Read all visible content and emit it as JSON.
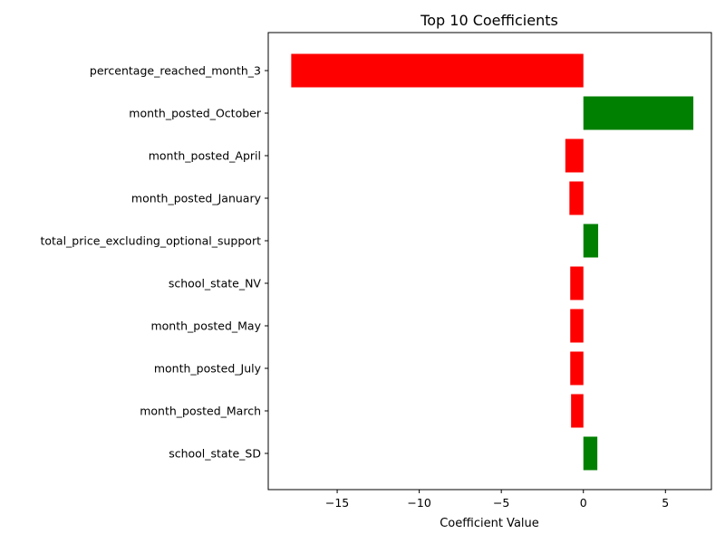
{
  "chart_data": {
    "type": "bar",
    "orientation": "horizontal",
    "title": "Top 10 Coefficients",
    "xlabel": "Coefficient Value",
    "ylabel": "",
    "xlim": [
      -19.2,
      7.8
    ],
    "xticks": [
      -15,
      -10,
      -5,
      0,
      5
    ],
    "xtick_labels": [
      "−15",
      "−10",
      "−5",
      "0",
      "5"
    ],
    "grid": false,
    "colors": {
      "positive": "#008000",
      "negative": "#ff0000"
    },
    "categories": [
      "percentage_reached_month_3",
      "month_posted_October",
      "month_posted_April",
      "month_posted_January",
      "total_price_excluding_optional_support",
      "school_state_NV",
      "month_posted_May",
      "month_posted_July",
      "month_posted_March",
      "school_state_SD"
    ],
    "values": [
      -17.8,
      6.7,
      -1.1,
      -0.85,
      0.9,
      -0.8,
      -0.8,
      -0.8,
      -0.75,
      0.85
    ]
  }
}
